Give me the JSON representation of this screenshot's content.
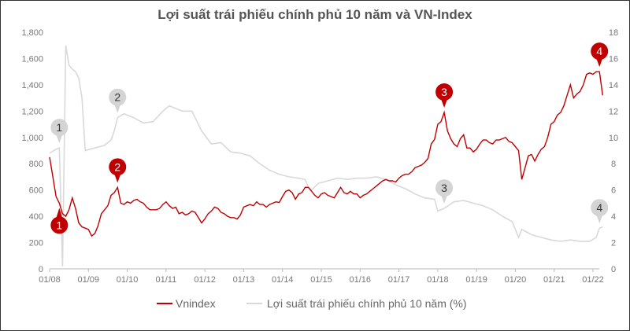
{
  "chart_data": {
    "type": "line",
    "title": "Lợi suất trái phiếu chính phủ 10 năm và VN-Index",
    "x_tick_labels": [
      "01/08",
      "01/09",
      "01/10",
      "01/11",
      "01/12",
      "01/13",
      "01/14",
      "01/15",
      "01/16",
      "01/17",
      "01/18",
      "01/19",
      "01/20",
      "01/21",
      "01/22"
    ],
    "x_range": [
      "2008-01",
      "2022-04"
    ],
    "y_left": {
      "range": [
        0,
        1800
      ],
      "tick_labels": [
        "0",
        "200",
        "400",
        "600",
        "800",
        "1,000",
        "1,200",
        "1,400",
        "1,600",
        "1,800"
      ]
    },
    "y_right": {
      "range": [
        0,
        18
      ],
      "tick_labels": [
        "0",
        "2",
        "4",
        "6",
        "8",
        "10",
        "12",
        "14",
        "16",
        "18"
      ]
    },
    "grid": false,
    "legend_position": "bottom",
    "colors": {
      "vnindex": "#c00000",
      "bond": "#d9d9d9",
      "text": "#555555"
    },
    "series": [
      {
        "name": "Vnindex",
        "axis": "left",
        "dates": [
          "2008-01",
          "2008-02",
          "2008-03",
          "2008-04",
          "2008-05",
          "2008-06",
          "2008-07",
          "2008-08",
          "2008-09",
          "2008-10",
          "2008-11",
          "2008-12",
          "2009-01",
          "2009-02",
          "2009-03",
          "2009-04",
          "2009-05",
          "2009-06",
          "2009-07",
          "2009-08",
          "2009-09",
          "2009-10",
          "2009-11",
          "2009-12",
          "2010-01",
          "2010-02",
          "2010-03",
          "2010-04",
          "2010-05",
          "2010-06",
          "2010-07",
          "2010-08",
          "2010-09",
          "2010-10",
          "2010-11",
          "2010-12",
          "2011-01",
          "2011-02",
          "2011-03",
          "2011-04",
          "2011-05",
          "2011-06",
          "2011-07",
          "2011-08",
          "2011-09",
          "2011-10",
          "2011-11",
          "2011-12",
          "2012-01",
          "2012-02",
          "2012-03",
          "2012-04",
          "2012-05",
          "2012-06",
          "2012-07",
          "2012-08",
          "2012-09",
          "2012-10",
          "2012-11",
          "2012-12",
          "2013-01",
          "2013-02",
          "2013-03",
          "2013-04",
          "2013-05",
          "2013-06",
          "2013-07",
          "2013-08",
          "2013-09",
          "2013-10",
          "2013-11",
          "2013-12",
          "2014-01",
          "2014-02",
          "2014-03",
          "2014-04",
          "2014-05",
          "2014-06",
          "2014-07",
          "2014-08",
          "2014-09",
          "2014-10",
          "2014-11",
          "2014-12",
          "2015-01",
          "2015-02",
          "2015-03",
          "2015-04",
          "2015-05",
          "2015-06",
          "2015-07",
          "2015-08",
          "2015-09",
          "2015-10",
          "2015-11",
          "2015-12",
          "2016-01",
          "2016-02",
          "2016-03",
          "2016-04",
          "2016-05",
          "2016-06",
          "2016-07",
          "2016-08",
          "2016-09",
          "2016-10",
          "2016-11",
          "2016-12",
          "2017-01",
          "2017-02",
          "2017-03",
          "2017-04",
          "2017-05",
          "2017-06",
          "2017-07",
          "2017-08",
          "2017-09",
          "2017-10",
          "2017-11",
          "2017-12",
          "2018-01",
          "2018-02",
          "2018-03",
          "2018-04",
          "2018-05",
          "2018-06",
          "2018-07",
          "2018-08",
          "2018-09",
          "2018-10",
          "2018-11",
          "2018-12",
          "2019-01",
          "2019-02",
          "2019-03",
          "2019-04",
          "2019-05",
          "2019-06",
          "2019-07",
          "2019-08",
          "2019-09",
          "2019-10",
          "2019-11",
          "2019-12",
          "2020-01",
          "2020-02",
          "2020-03",
          "2020-04",
          "2020-05",
          "2020-06",
          "2020-07",
          "2020-08",
          "2020-09",
          "2020-10",
          "2020-11",
          "2020-12",
          "2021-01",
          "2021-02",
          "2021-03",
          "2021-04",
          "2021-05",
          "2021-06",
          "2021-07",
          "2021-08",
          "2021-09",
          "2021-10",
          "2021-11",
          "2021-12",
          "2022-01",
          "2022-02",
          "2022-03",
          "2022-04"
        ],
        "values": [
          850,
          700,
          550,
          500,
          420,
          400,
          450,
          540,
          460,
          350,
          320,
          310,
          300,
          250,
          270,
          330,
          420,
          450,
          480,
          560,
          580,
          620,
          500,
          490,
          510,
          500,
          520,
          530,
          510,
          500,
          470,
          450,
          450,
          450,
          460,
          490,
          510,
          480,
          460,
          470,
          420,
          430,
          410,
          420,
          440,
          430,
          390,
          350,
          380,
          420,
          440,
          470,
          460,
          430,
          420,
          400,
          390,
          390,
          380,
          410,
          470,
          480,
          490,
          480,
          510,
          490,
          490,
          470,
          490,
          500,
          510,
          505,
          550,
          590,
          600,
          580,
          530,
          570,
          580,
          620,
          620,
          590,
          560,
          540,
          570,
          580,
          560,
          550,
          540,
          580,
          620,
          580,
          570,
          590,
          570,
          570,
          540,
          560,
          570,
          590,
          610,
          630,
          650,
          670,
          680,
          670,
          670,
          660,
          690,
          710,
          720,
          720,
          740,
          770,
          780,
          790,
          810,
          840,
          950,
          985,
          1100,
          1120,
          1190,
          1050,
          990,
          950,
          930,
          990,
          1020,
          920,
          920,
          890,
          910,
          950,
          980,
          980,
          960,
          950,
          980,
          980,
          990,
          1000,
          970,
          960,
          930,
          900,
          680,
          770,
          860,
          870,
          820,
          870,
          910,
          930,
          1000,
          1100,
          1120,
          1170,
          1190,
          1240,
          1320,
          1400,
          1300,
          1330,
          1350,
          1400,
          1480,
          1490,
          1480,
          1500,
          1500,
          1320
        ]
      },
      {
        "name": "Lợi suất trái phiếu chính phủ 10 năm (%)",
        "axis": "right",
        "dates": [
          "2008-01",
          "2008-03",
          "2008-04",
          "2008-05",
          "2008-06",
          "2008-07",
          "2008-08",
          "2008-09",
          "2008-10",
          "2008-11",
          "2008-12",
          "2009-03",
          "2009-06",
          "2009-08",
          "2009-09",
          "2009-10",
          "2009-12",
          "2010-03",
          "2010-06",
          "2010-09",
          "2010-12",
          "2011-02",
          "2011-06",
          "2011-09",
          "2011-10",
          "2011-12",
          "2012-03",
          "2012-06",
          "2012-09",
          "2012-12",
          "2013-03",
          "2013-06",
          "2013-09",
          "2013-12",
          "2014-03",
          "2014-06",
          "2014-08",
          "2014-09",
          "2014-10",
          "2014-12",
          "2015-03",
          "2015-06",
          "2015-09",
          "2015-12",
          "2016-03",
          "2016-06",
          "2016-09",
          "2016-12",
          "2017-03",
          "2017-06",
          "2017-09",
          "2017-12",
          "2018-01",
          "2018-03",
          "2018-06",
          "2018-09",
          "2018-12",
          "2019-03",
          "2019-06",
          "2019-09",
          "2019-12",
          "2020-02",
          "2020-03",
          "2020-06",
          "2020-09",
          "2020-12",
          "2021-03",
          "2021-06",
          "2021-09",
          "2021-12",
          "2022-02",
          "2022-03",
          "2022-04"
        ],
        "values": [
          8.8,
          9.1,
          9.2,
          0.2,
          17.0,
          15.5,
          15.2,
          15.0,
          14.5,
          13.0,
          9.0,
          9.2,
          9.4,
          9.8,
          10.5,
          11.5,
          11.8,
          11.5,
          11.1,
          11.2,
          12.0,
          12.4,
          12.0,
          12.0,
          11.5,
          10.5,
          9.5,
          9.6,
          8.9,
          8.8,
          8.6,
          8.0,
          7.5,
          7.2,
          7.0,
          6.9,
          6.8,
          6.2,
          6.0,
          6.5,
          6.7,
          6.9,
          6.8,
          6.9,
          6.9,
          7.0,
          6.8,
          6.4,
          6.1,
          5.7,
          5.4,
          5.3,
          4.4,
          4.6,
          5.1,
          5.2,
          5.0,
          4.8,
          4.5,
          4.0,
          3.6,
          2.4,
          3.0,
          2.6,
          2.4,
          2.2,
          2.1,
          2.2,
          2.1,
          2.1,
          2.4,
          3.1,
          3.2
        ]
      }
    ],
    "annotations": [
      {
        "label": "1",
        "date": "2008-04",
        "series": "Vnindex"
      },
      {
        "label": "1",
        "date": "2008-04",
        "series": "bond"
      },
      {
        "label": "2",
        "date": "2009-10",
        "series": "Vnindex"
      },
      {
        "label": "2",
        "date": "2009-10",
        "series": "bond"
      },
      {
        "label": "3",
        "date": "2018-03",
        "series": "Vnindex"
      },
      {
        "label": "3",
        "date": "2018-03",
        "series": "bond"
      },
      {
        "label": "4",
        "date": "2022-03",
        "series": "Vnindex"
      },
      {
        "label": "4",
        "date": "2022-03",
        "series": "bond"
      }
    ]
  }
}
